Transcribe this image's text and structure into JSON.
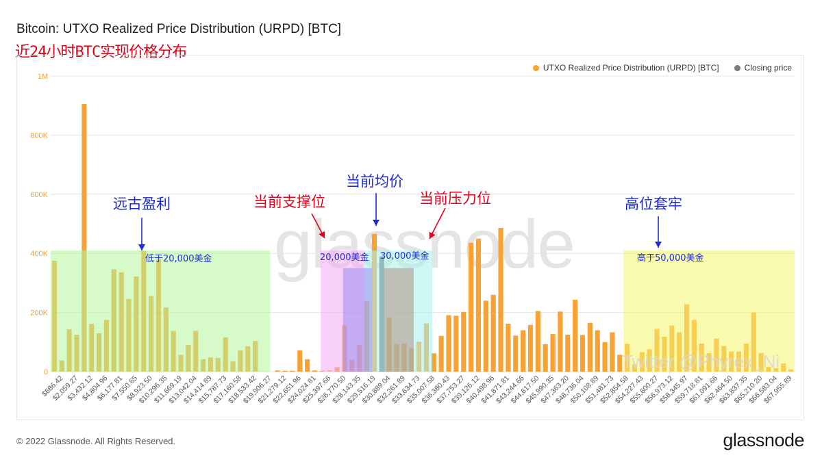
{
  "header": {
    "title": "Bitcoin: UTXO Realized Price Distribution (URPD) [BTC]",
    "subtitle": "近24小时BTC实现价格分布"
  },
  "legend": {
    "urpd_label": "UTXO Realized Price Distribution (URPD) [BTC]",
    "closing_label": "Closing price"
  },
  "colors": {
    "bar": "#f7a235",
    "closing": "#7a7a7a",
    "green_zone": "#b5f59a",
    "pink_zone": "#f4a9f0",
    "purple_zone": "#9b8cf2",
    "cyan_zone": "#a7f3ec",
    "brown_zone": "#b08f84",
    "yellow_zone": "#f5f56e",
    "blue_text": "#1d2bd8",
    "red_text": "#e0001a"
  },
  "annotations": {
    "ancient_profit": "远古盈利",
    "below_20k": "低于20,000美金",
    "support": "当前支撑位",
    "avg_price": "当前均价",
    "resistance": "当前压力位",
    "usd_20k": "20,000美金",
    "usd_30k": "30,000美金",
    "high_trapped": "高位套牢",
    "above_50k": "高于50,000美金"
  },
  "watermark": "glassnode",
  "twitter_mark": "Twitter @Phyrex_Ni",
  "footer": {
    "copyright": "© 2022 Glassnode. All Rights Reserved.",
    "brand": "glassnode"
  },
  "chart_data": {
    "type": "bar",
    "title": "Bitcoin: UTXO Realized Price Distribution (URPD) [BTC]",
    "ylim": [
      0,
      1000000
    ],
    "yticks": [
      0,
      200000,
      400000,
      600000,
      800000,
      1000000
    ],
    "ytick_labels": [
      "0",
      "200K",
      "400K",
      "600K",
      "800K",
      "1M"
    ],
    "grid": true,
    "legend_position": "top-right",
    "xtick_labels": [
      "$686.42",
      "$2,059.27",
      "$3,432.12",
      "$4,804.96",
      "$6,177.81",
      "$7,550.65",
      "$8,923.50",
      "$10,296.35",
      "$11,669.19",
      "$13,042.04",
      "$14,414.89",
      "$15,787.73",
      "$17,160.58",
      "$18,533.42",
      "$19,906.27",
      "$21,279.12",
      "$22,651.96",
      "$24,024.81",
      "$25,397.66",
      "$26,770.50",
      "$28,143.35",
      "$29,516.19",
      "$30,889.04",
      "$32,261.89",
      "$33,634.73",
      "$35,007.58",
      "$36,380.43",
      "$37,753.27",
      "$39,126.12",
      "$40,498.96",
      "$41,871.81",
      "$43,244.66",
      "$44,617.50",
      "$45,990.35",
      "$47,363.20",
      "$48,736.04",
      "$50,108.89",
      "$51,481.73",
      "$52,854.58",
      "$54,227.43",
      "$55,600.27",
      "$56,973.12",
      "$58,345.97",
      "$59,718.81",
      "$61,091.66",
      "$62,464.50",
      "$63,837.35",
      "$65,210.20",
      "$66,583.04",
      "$67,955.89"
    ],
    "values": [
      375000,
      38000,
      143000,
      125000,
      905000,
      162000,
      130000,
      175000,
      346000,
      336000,
      246000,
      322000,
      408000,
      256000,
      380000,
      217000,
      138000,
      57000,
      90000,
      138000,
      42000,
      48000,
      46000,
      116000,
      35000,
      72000,
      86000,
      104000,
      0,
      0,
      4000,
      3000,
      3000,
      72000,
      42000,
      4000,
      3000,
      4000,
      15000,
      157000,
      40000,
      90000,
      238000,
      466000,
      390000,
      183000,
      94000,
      95000,
      79000,
      101000,
      163000,
      62000,
      121000,
      191000,
      189000,
      202000,
      436000,
      450000,
      240000,
      260000,
      486000,
      162000,
      122000,
      140000,
      158000,
      205000,
      93000,
      127000,
      203000,
      125000,
      243000,
      124000,
      165000,
      140000,
      100000,
      133000,
      57000,
      94000,
      25000,
      66000,
      76000,
      145000,
      118000,
      156000,
      133000,
      228000,
      175000,
      95000,
      63000,
      112000,
      87000,
      68000,
      68000,
      95000,
      200000,
      63000,
      16000,
      12000,
      28000,
      8000
    ],
    "closing_index": 44
  }
}
